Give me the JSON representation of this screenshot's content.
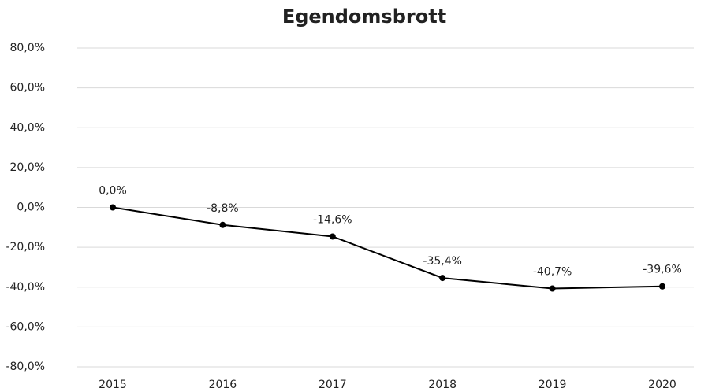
{
  "chart_data": {
    "type": "line",
    "title": "Egendomsbrott",
    "categories": [
      "2015",
      "2016",
      "2017",
      "2018",
      "2019",
      "2020"
    ],
    "series": [
      {
        "name": "Egendomsbrott",
        "color": "#000000",
        "values": [
          0.0,
          -8.8,
          -14.6,
          -35.4,
          -40.7,
          -39.6
        ],
        "value_labels": [
          "0,0%",
          "-8,8%",
          "-14,6%",
          "-35,4%",
          "-40,7%",
          "-39,6%"
        ]
      }
    ],
    "ylim": [
      -80,
      80
    ],
    "yticks": [
      {
        "value": -80,
        "label": "-80,0%"
      },
      {
        "value": -60,
        "label": "-60,0%"
      },
      {
        "value": -40,
        "label": "-40,0%"
      },
      {
        "value": -20,
        "label": "-20,0%"
      },
      {
        "value": 0,
        "label": "0,0%"
      },
      {
        "value": 20,
        "label": "20,0%"
      },
      {
        "value": 40,
        "label": "40,0%"
      },
      {
        "value": 60,
        "label": "60,0%"
      },
      {
        "value": 80,
        "label": "80,0%"
      }
    ],
    "grid": true
  }
}
